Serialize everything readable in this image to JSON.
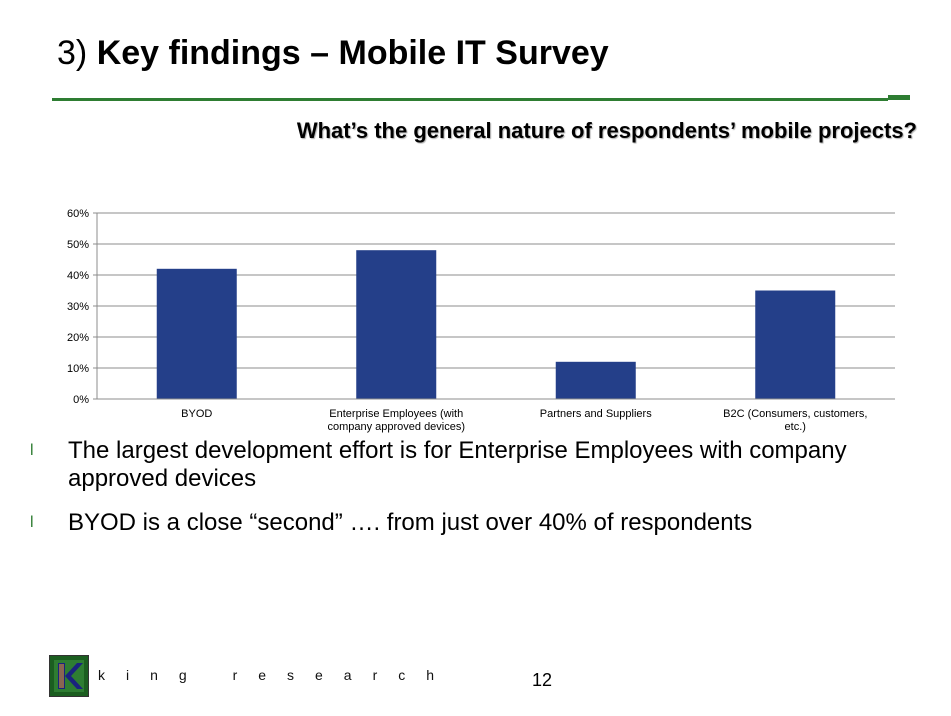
{
  "slide": {
    "title_number": "3)",
    "title_main": "Key findings – Mobile IT Survey",
    "question": "What’s the general nature of respondents’ mobile projects?",
    "page_number": "12"
  },
  "bullets": [
    "The largest development effort is for Enterprise Employees with company approved devices",
    "BYOD is a close “second” …. from just over 40% of respondents"
  ],
  "bullet_glyph": "l",
  "logo": {
    "wordmark": "king research",
    "letter": "K"
  },
  "colors": {
    "accent": "#2e7d32",
    "bar": "#243f89",
    "grid": "#8c8c8c"
  },
  "chart_data": {
    "type": "bar",
    "categories": [
      "BYOD",
      "Enterprise Employees (with company approved devices)",
      "Partners and Suppliers",
      "B2C (Consumers, customers, etc.)"
    ],
    "values": [
      42,
      48,
      12,
      35
    ],
    "ylim": [
      0,
      60
    ],
    "yticks": [
      "0%",
      "10%",
      "20%",
      "30%",
      "40%",
      "50%",
      "60%"
    ],
    "grid": true,
    "legend": "none"
  }
}
